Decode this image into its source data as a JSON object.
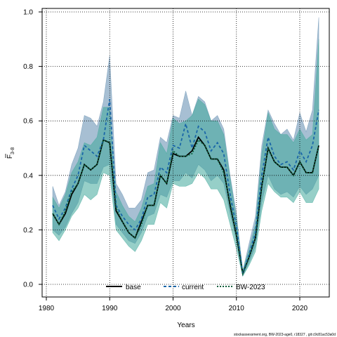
{
  "chart_data": {
    "type": "line",
    "xlabel": "Years",
    "ylabel": "F",
    "ylabel_subscript": "3-8",
    "xlim": [
      1980,
      2024
    ],
    "ylim": [
      0,
      1
    ],
    "x_ticks": [
      "1980",
      "1990",
      "2000",
      "2010",
      "2020"
    ],
    "y_ticks": [
      "0.0",
      "0.2",
      "0.4",
      "0.6",
      "0.8",
      "1.0"
    ],
    "grid": "dotted",
    "legend_position": "bottom-center",
    "footer": "stockassessment.org, BW-2023-age0, r18327 , git:c9c81ac53a0d",
    "x": [
      1981,
      1982,
      1983,
      1984,
      1985,
      1986,
      1987,
      1988,
      1989,
      1990,
      1991,
      1992,
      1993,
      1994,
      1995,
      1996,
      1997,
      1998,
      1999,
      2000,
      2001,
      2002,
      2003,
      2004,
      2005,
      2006,
      2007,
      2008,
      2009,
      2010,
      2011,
      2012,
      2013,
      2014,
      2015,
      2016,
      2017,
      2018,
      2019,
      2020,
      2021,
      2022,
      2023
    ],
    "series": [
      {
        "name": "base",
        "color": "#000000",
        "line": "solid",
        "values": [
          0.26,
          0.22,
          0.26,
          0.33,
          0.37,
          0.44,
          0.42,
          0.44,
          0.53,
          0.52,
          0.27,
          0.23,
          0.19,
          0.17,
          0.23,
          0.29,
          0.29,
          0.4,
          0.37,
          0.48,
          0.47,
          0.47,
          0.49,
          0.54,
          0.51,
          0.46,
          0.46,
          0.42,
          0.29,
          0.18,
          0.04,
          0.1,
          0.17,
          0.36,
          0.5,
          0.45,
          0.43,
          0.43,
          0.4,
          0.45,
          0.41,
          0.41,
          0.51
        ]
      },
      {
        "name": "current",
        "color": "#1a66a8",
        "line": "dashed",
        "fill": "#5f8aae",
        "values": [
          0.29,
          0.24,
          0.28,
          0.35,
          0.4,
          0.51,
          0.49,
          0.47,
          0.53,
          0.68,
          0.29,
          0.25,
          0.22,
          0.2,
          0.24,
          0.32,
          0.33,
          0.43,
          0.41,
          0.51,
          0.5,
          0.59,
          0.5,
          0.58,
          0.56,
          0.49,
          0.52,
          0.48,
          0.33,
          0.21,
          0.04,
          0.11,
          0.19,
          0.4,
          0.54,
          0.47,
          0.44,
          0.45,
          0.42,
          0.49,
          0.45,
          0.51,
          0.64
        ],
        "lower": [
          0.2,
          0.18,
          0.21,
          0.26,
          0.3,
          0.38,
          0.37,
          0.37,
          0.43,
          0.44,
          0.22,
          0.19,
          0.16,
          0.15,
          0.19,
          0.25,
          0.26,
          0.33,
          0.32,
          0.38,
          0.38,
          0.41,
          0.39,
          0.44,
          0.42,
          0.38,
          0.4,
          0.37,
          0.26,
          0.16,
          0.03,
          0.08,
          0.14,
          0.3,
          0.4,
          0.35,
          0.33,
          0.34,
          0.32,
          0.36,
          0.33,
          0.35,
          0.4
        ],
        "upper": [
          0.36,
          0.29,
          0.34,
          0.44,
          0.5,
          0.62,
          0.61,
          0.58,
          0.67,
          0.84,
          0.37,
          0.33,
          0.28,
          0.28,
          0.31,
          0.41,
          0.42,
          0.54,
          0.52,
          0.62,
          0.61,
          0.71,
          0.62,
          0.69,
          0.67,
          0.6,
          0.62,
          0.57,
          0.4,
          0.26,
          0.05,
          0.15,
          0.25,
          0.51,
          0.64,
          0.59,
          0.55,
          0.57,
          0.53,
          0.63,
          0.56,
          0.64,
          0.98
        ]
      },
      {
        "name": "BW-2023",
        "color": "#0d5e3b",
        "line": "dotted",
        "fill": "#3fa89a",
        "values": [
          0.26,
          0.22,
          0.27,
          0.34,
          0.37,
          0.44,
          0.42,
          0.44,
          0.53,
          0.52,
          0.28,
          0.23,
          0.19,
          0.17,
          0.22,
          0.29,
          0.29,
          0.4,
          0.37,
          0.49,
          0.47,
          0.47,
          0.48,
          0.53,
          0.51,
          0.46,
          0.46,
          0.41,
          0.3,
          0.18,
          0.04,
          0.1,
          0.17,
          0.36,
          0.5,
          0.45,
          0.43,
          0.43,
          0.4,
          0.45,
          0.41,
          0.41,
          0.51
        ],
        "lower": [
          0.19,
          0.16,
          0.2,
          0.25,
          0.28,
          0.33,
          0.31,
          0.33,
          0.41,
          0.4,
          0.2,
          0.17,
          0.14,
          0.12,
          0.16,
          0.22,
          0.22,
          0.3,
          0.28,
          0.37,
          0.36,
          0.36,
          0.37,
          0.41,
          0.39,
          0.35,
          0.35,
          0.31,
          0.22,
          0.13,
          0.03,
          0.07,
          0.12,
          0.27,
          0.37,
          0.34,
          0.32,
          0.32,
          0.3,
          0.34,
          0.3,
          0.3,
          0.35
        ],
        "upper": [
          0.32,
          0.28,
          0.33,
          0.41,
          0.45,
          0.52,
          0.51,
          0.54,
          0.65,
          0.65,
          0.34,
          0.29,
          0.25,
          0.23,
          0.28,
          0.36,
          0.37,
          0.52,
          0.48,
          0.61,
          0.59,
          0.6,
          0.62,
          0.68,
          0.66,
          0.6,
          0.6,
          0.55,
          0.39,
          0.24,
          0.05,
          0.13,
          0.22,
          0.48,
          0.63,
          0.57,
          0.55,
          0.55,
          0.52,
          0.57,
          0.53,
          0.55,
          0.9
        ]
      }
    ]
  }
}
